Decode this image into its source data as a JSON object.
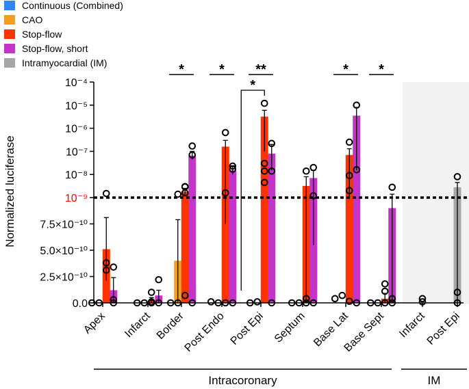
{
  "chart_data": {
    "type": "bar",
    "ylabel": "Normalized luciferase",
    "y_axis": {
      "linear_segment": {
        "range": [
          0,
          1e-09
        ],
        "ticks": [
          "0.0",
          "2.5×10⁻¹⁰",
          "5.0×10⁻¹⁰",
          "7.5×10⁻¹⁰"
        ]
      },
      "log_segment": {
        "range": [
          1e-09,
          0.0001
        ],
        "ticks": [
          "10⁻⁹",
          "10⁻⁸",
          "10⁻⁷",
          "10⁻⁶",
          "10⁻⁵",
          "10⁻⁴"
        ]
      },
      "threshold_label": "10⁻⁹"
    },
    "series": [
      {
        "name": "Continuous (Combined)",
        "color": "#2f86f6"
      },
      {
        "name": "CAO",
        "color": "#f0a020"
      },
      {
        "name": "Stop-flow",
        "color": "#ff3300"
      },
      {
        "name": "Stop-flow, short",
        "color": "#c335c8"
      },
      {
        "name": "Intramyocardial (IM)",
        "color": "#a6a6a6"
      }
    ],
    "categories": [
      "Apex",
      "Infarct",
      "Border",
      "Post Endo",
      "Post Epi",
      "Septum",
      "Base Lat",
      "Base Sept",
      "Infarct",
      "Post Epi"
    ],
    "groups": [
      {
        "label": "Intracoronary",
        "categories": [
          0,
          7
        ]
      },
      {
        "label": "IM",
        "categories": [
          8,
          9
        ]
      }
    ],
    "bars": [
      {
        "category": 0,
        "series": 0,
        "mean": 0,
        "err_hi": 0,
        "err_lo": 0,
        "points": [
          0
        ]
      },
      {
        "category": 0,
        "series": 1,
        "mean": 0,
        "err_hi": 0,
        "err_lo": 0,
        "points": [
          0
        ]
      },
      {
        "category": 0,
        "series": 2,
        "mean": 5.1e-10,
        "err_hi": 8.1e-10,
        "err_lo": 2.1e-10,
        "points": [
          3.1e-10,
          3.8e-10,
          1.5e-09
        ]
      },
      {
        "category": 0,
        "series": 3,
        "mean": 1.2e-10,
        "err_hi": 2.4e-10,
        "err_lo": 0,
        "points": [
          3.4e-10,
          3e-11,
          0
        ]
      },
      {
        "category": 1,
        "series": 0,
        "mean": 0,
        "err_hi": 0,
        "err_lo": 0,
        "points": [
          0
        ]
      },
      {
        "category": 1,
        "series": 1,
        "mean": 0,
        "err_hi": 0,
        "err_lo": 0,
        "points": [
          0
        ]
      },
      {
        "category": 1,
        "series": 2,
        "mean": 2e-11,
        "err_hi": 5e-11,
        "err_lo": 0,
        "points": [
          1e-10,
          1e-11,
          0
        ]
      },
      {
        "category": 1,
        "series": 3,
        "mean": 7e-11,
        "err_hi": 1.2e-10,
        "err_lo": 0,
        "points": [
          2.2e-10,
          0
        ]
      },
      {
        "category": 2,
        "series": 0,
        "mean": 0,
        "err_hi": 0,
        "err_lo": 0,
        "points": [
          0
        ]
      },
      {
        "category": 2,
        "series": 1,
        "mean": 4e-10,
        "err_hi": 7.9e-10,
        "err_lo": 0,
        "points": [
          1.4e-09,
          0
        ]
      },
      {
        "category": 2,
        "series": 2,
        "mean": 1.8e-09,
        "err_hi": 2.5e-09,
        "err_lo": 1.3e-09,
        "points": [
          3e-09,
          7e-11,
          1.6e-09,
          2.9e-09
        ]
      },
      {
        "category": 2,
        "series": 3,
        "mean": 6.5e-08,
        "err_hi": 1e-07,
        "err_lo": 4.5e-08,
        "points": [
          1.7e-07,
          7e-08,
          0
        ]
      },
      {
        "category": 3,
        "series": 0,
        "mean": 0,
        "err_hi": 0,
        "err_lo": 0,
        "points": [
          1e-11
        ]
      },
      {
        "category": 3,
        "series": 1,
        "mean": 0,
        "err_hi": 0,
        "err_lo": 0,
        "points": [
          0
        ]
      },
      {
        "category": 3,
        "series": 2,
        "mean": 1.6e-07,
        "err_hi": 3e-07,
        "err_lo": 7.5e-10,
        "points": [
          6.5e-07,
          1.6e-09,
          0
        ]
      },
      {
        "category": 3,
        "series": 3,
        "mean": 1.5e-08,
        "err_hi": 2.4e-08,
        "err_lo": 1e-08,
        "points": [
          2.3e-08,
          1.7e-08,
          0
        ]
      },
      {
        "category": 4,
        "series": 0,
        "mean": 0,
        "err_hi": 0,
        "err_lo": 0,
        "points": [
          0
        ]
      },
      {
        "category": 4,
        "series": 1,
        "mean": 0,
        "err_hi": 0,
        "err_lo": 0,
        "points": [
          1e-11
        ]
      },
      {
        "category": 4,
        "series": 2,
        "mean": 3.2e-06,
        "err_hi": 6e-06,
        "err_lo": 1e-07,
        "points": [
          1.2e-05,
          3e-08,
          1.4e-08,
          4.5e-09
        ]
      },
      {
        "category": 4,
        "series": 3,
        "mean": 8e-08,
        "err_hi": 2e-07,
        "err_lo": 1.5e-08,
        "points": [
          2.2e-07,
          1.4e-08,
          0
        ]
      },
      {
        "category": 5,
        "series": 0,
        "mean": 0,
        "err_hi": 0,
        "err_lo": 0,
        "points": [
          0
        ]
      },
      {
        "category": 5,
        "series": 1,
        "mean": 0,
        "err_hi": 0,
        "err_lo": 0,
        "points": [
          0
        ]
      },
      {
        "category": 5,
        "series": 2,
        "mean": 3.2e-09,
        "err_hi": 8e-09,
        "err_lo": 0,
        "points": [
          1.4e-08,
          4e-11,
          0
        ]
      },
      {
        "category": 5,
        "series": 3,
        "mean": 7e-09,
        "err_hi": 1.5e-08,
        "err_lo": 5.5e-10,
        "points": [
          2e-08,
          1.2e-09,
          0
        ]
      },
      {
        "category": 6,
        "series": 0,
        "mean": 0,
        "err_hi": 0,
        "err_lo": 0,
        "points": [
          4e-11
        ]
      },
      {
        "category": 6,
        "series": 1,
        "mean": 0,
        "err_hi": 0,
        "err_lo": 0,
        "points": [
          7e-11
        ]
      },
      {
        "category": 6,
        "series": 2,
        "mean": 7e-08,
        "err_hi": 1.3e-07,
        "err_lo": 1e-09,
        "points": [
          2.5e-07,
          9e-09,
          2e-09,
          1.5e-11
        ]
      },
      {
        "category": 6,
        "series": 3,
        "mean": 3.5e-06,
        "err_hi": 8e-06,
        "err_lo": 1.5e-08,
        "points": [
          1e-05,
          1.6e-08,
          0
        ]
      },
      {
        "category": 7,
        "series": 0,
        "mean": 0,
        "err_hi": 0,
        "err_lo": 0,
        "points": [
          0
        ]
      },
      {
        "category": 7,
        "series": 1,
        "mean": 0,
        "err_hi": 0,
        "err_lo": 0,
        "points": [
          0
        ]
      },
      {
        "category": 7,
        "series": 2,
        "mean": 4e-11,
        "err_hi": 9e-11,
        "err_lo": 0,
        "points": [
          1.8e-10,
          1.1e-10,
          0
        ]
      },
      {
        "category": 7,
        "series": 3,
        "mean": 9e-10,
        "err_hi": 1.4e-09,
        "err_lo": 0,
        "points": [
          2.8e-09,
          4e-11,
          0
        ]
      },
      {
        "category": 8,
        "series": 4,
        "mean": 0,
        "err_hi": 0,
        "err_lo": 0,
        "points": [
          4e-11,
          1e-11
        ]
      },
      {
        "category": 9,
        "series": 4,
        "mean": 2.8e-09,
        "err_hi": 4.5e-09,
        "err_lo": 0,
        "points": [
          8e-09,
          1e-10,
          0
        ]
      }
    ],
    "significance": [
      {
        "category": 2,
        "label": "*",
        "level": 0
      },
      {
        "category": 3,
        "label": "*",
        "level": 0
      },
      {
        "category": 4,
        "label": "**",
        "level": 0
      },
      {
        "category": 4,
        "label": "*",
        "level": 1,
        "bracket_from_series": 0,
        "bracket_to_series": 2
      },
      {
        "category": 6,
        "label": "*",
        "level": 0
      },
      {
        "category": 7,
        "label": "*",
        "level": 0
      }
    ],
    "threshold_line": 1e-09
  }
}
